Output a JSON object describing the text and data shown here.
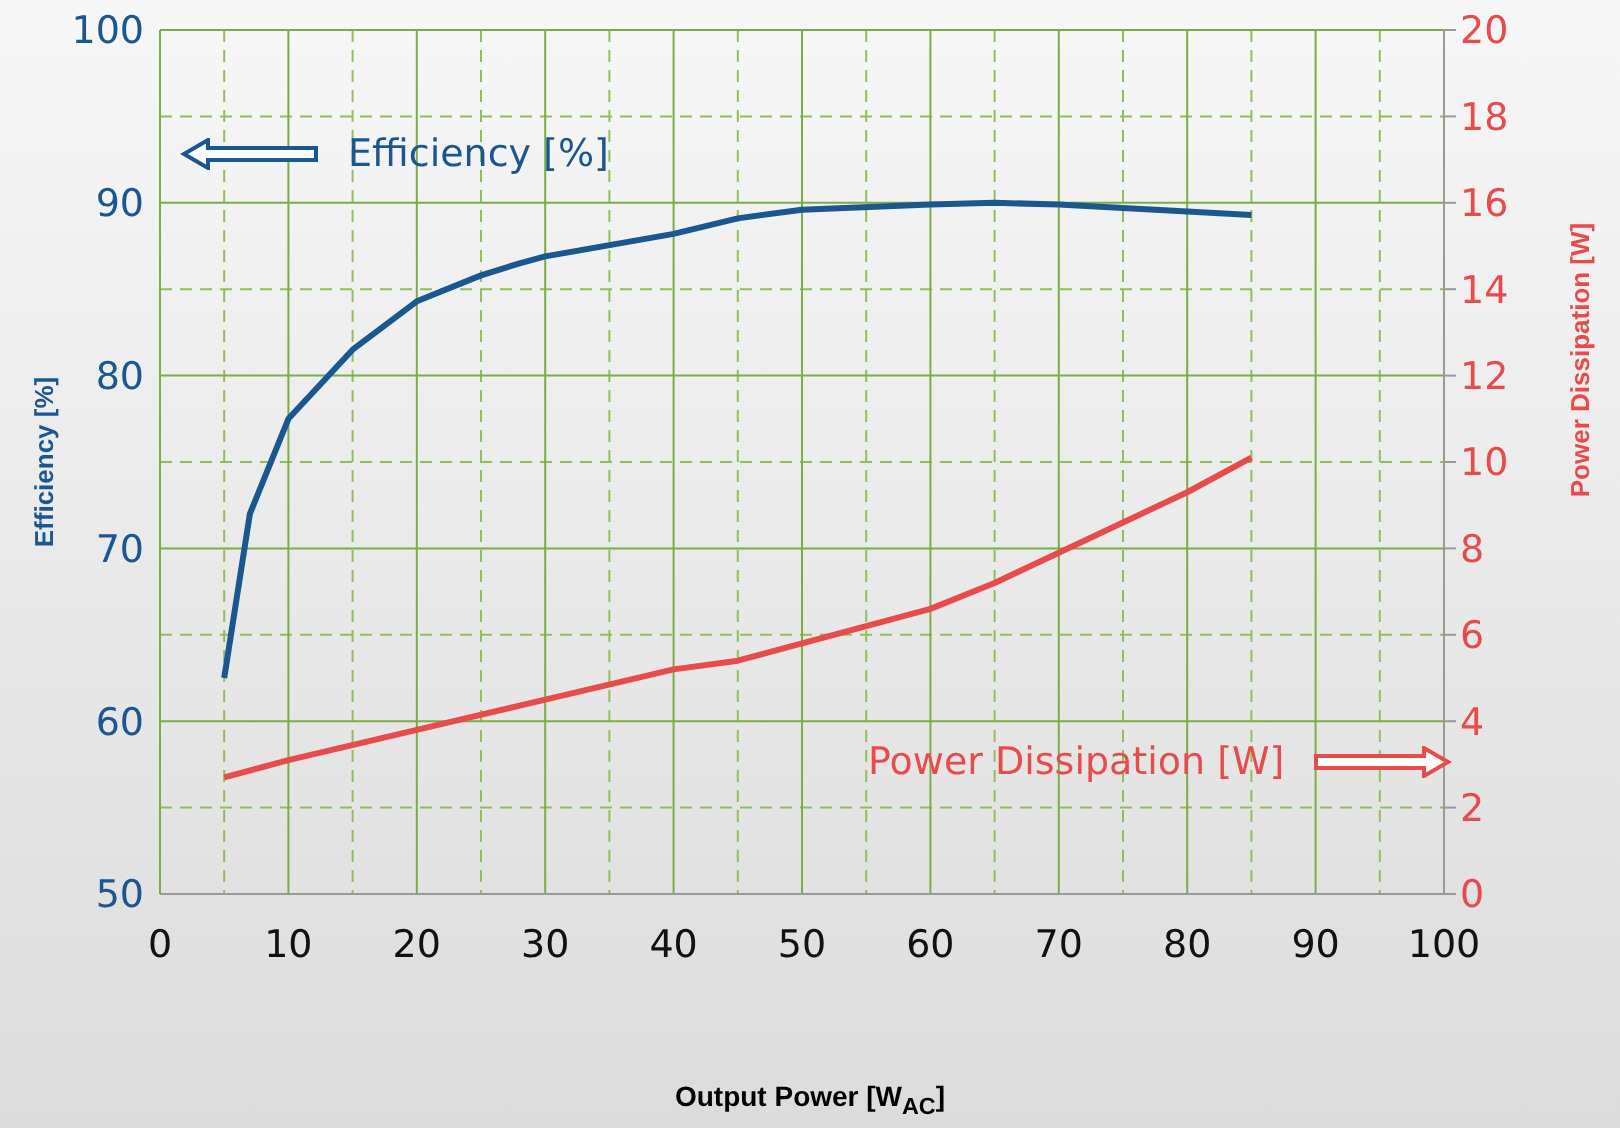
{
  "chart_data": {
    "type": "line",
    "xlabel": "Output Power [W$_{AC}$]",
    "ylabel": "Efficiency [%]",
    "y2label": "Power Dissipation [W]",
    "xlim": [
      0,
      100
    ],
    "xticks": [
      0,
      10,
      20,
      30,
      40,
      50,
      60,
      70,
      80,
      90,
      100
    ],
    "ylim": [
      50,
      100
    ],
    "yticks": [
      50,
      60,
      70,
      80,
      90,
      100
    ],
    "y2lim": [
      0,
      20
    ],
    "y2ticks": [
      0,
      2,
      4,
      6,
      8,
      10,
      12,
      14,
      16,
      18,
      20
    ],
    "grid": true,
    "legend": "top left",
    "marker": "none",
    "line_style": "solid",
    "x": [
      5,
      7,
      10,
      15,
      20,
      25,
      28,
      30,
      40,
      45,
      50,
      60,
      65,
      70,
      80,
      85
    ],
    "series": [
      {
        "name": "Efficiency [%]",
        "color": "#1a5690",
        "values": [
          62.5,
          72,
          77.5,
          81.5,
          84.3,
          85.8,
          86.5,
          86.9,
          88.2,
          89.1,
          89.6,
          89.9,
          90,
          89.9,
          89.5,
          89.3
        ]
      },
      {
        "name": "Power Dissipation [W]",
        "color": "#e84b4b",
        "axis": "y2",
        "x": [
          5,
          10,
          20,
          30,
          40,
          45,
          50,
          60,
          65,
          70,
          80,
          85
        ],
        "values": [
          2.7,
          3.1,
          3.8,
          4.5,
          5.2,
          5.4,
          5.8,
          6.6,
          7.2,
          7.9,
          9.3,
          10.1
        ]
      }
    ]
  }
}
